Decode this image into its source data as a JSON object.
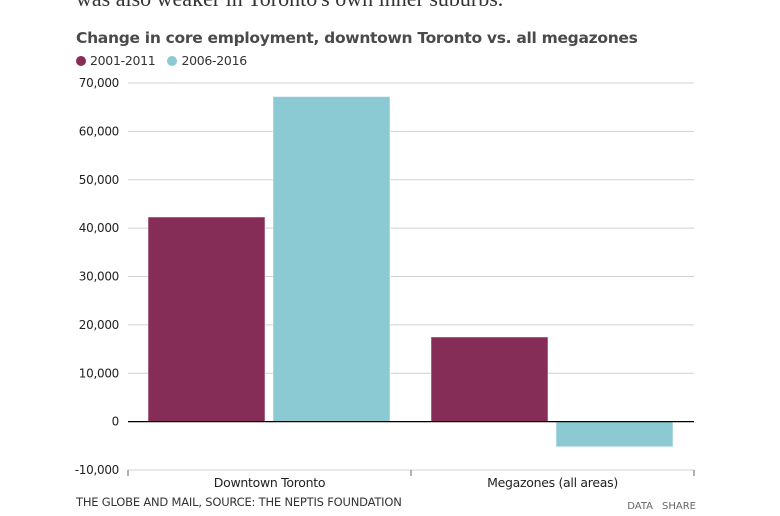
{
  "intro_text": "was also weaker in Toronto's own inner suburbs.",
  "footer": {
    "source": "THE GLOBE AND MAIL, SOURCE: THE NEPTIS FOUNDATION",
    "data_link": "DATA",
    "share_link": "SHARE"
  },
  "chart_data": {
    "type": "bar",
    "title": "Change in core employment, downtown Toronto vs. all megazones",
    "xlabel": "",
    "ylabel": "",
    "categories": [
      "Downtown Toronto",
      "Megazones (all areas)"
    ],
    "series": [
      {
        "name": "2001-2011",
        "color": "#852d57",
        "values": [
          42300,
          17500
        ]
      },
      {
        "name": "2006-2016",
        "color": "#8bcad3",
        "values": [
          67200,
          -5200
        ]
      }
    ],
    "ylim": [
      -10000,
      70000
    ],
    "yticks": [
      70000,
      60000,
      50000,
      40000,
      30000,
      20000,
      10000,
      0,
      -10000
    ],
    "ytick_labels": [
      "70,000",
      "60,000",
      "50,000",
      "40,000",
      "30,000",
      "20,000",
      "10,000",
      "0",
      "-10,000"
    ],
    "grid": true,
    "legend_position": "top-left"
  }
}
